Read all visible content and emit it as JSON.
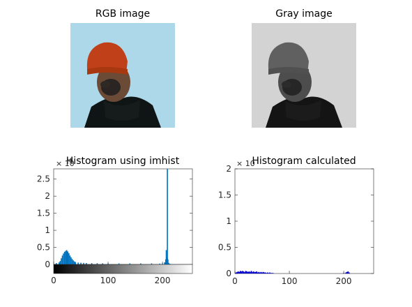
{
  "figure": {
    "rgb_title": "RGB image",
    "gray_title": "Gray image",
    "rgb_image_icon": "portrait-photo",
    "gray_image_icon": "portrait-photo-grayscale",
    "colors": {
      "rgb_background": "#add8ea",
      "gray_background": "#d3d3d3",
      "hist_blue": "#0072bd",
      "calc_blue": "#0000cc"
    }
  },
  "chart_data": [
    {
      "type": "bar",
      "title": "Histogram using imhist",
      "exponent_label": "× 10⁴",
      "exponent_display": "× 10",
      "exponent_power": "4",
      "xlim": [
        0,
        255
      ],
      "ylim": [
        0,
        28000
      ],
      "xticks": [
        0,
        100,
        200
      ],
      "yticks": [
        0,
        5000,
        10000,
        15000,
        20000,
        25000
      ],
      "ytick_labels": [
        "0",
        "0.5",
        "1",
        "1.5",
        "2",
        "2.5"
      ],
      "colorbar": "grayscale",
      "series": [
        {
          "x": [
            5,
            10,
            12,
            14,
            16,
            18,
            20,
            22,
            24,
            26,
            28,
            30,
            32,
            34,
            36,
            38,
            40,
            45,
            50,
            55,
            60,
            70,
            80,
            90,
            100,
            120,
            140,
            160,
            180,
            195,
            200,
            204,
            206,
            207,
            208,
            209,
            210,
            211,
            212,
            214,
            218,
            225,
            235,
            250
          ],
          "y": [
            400,
            600,
            1000,
            1800,
            2600,
            3200,
            3700,
            4000,
            4200,
            3800,
            3300,
            2600,
            2100,
            1600,
            1200,
            900,
            700,
            550,
            500,
            450,
            400,
            380,
            350,
            330,
            300,
            300,
            300,
            300,
            300,
            250,
            300,
            600,
            1500,
            4200,
            2000,
            28000,
            1500,
            500,
            300,
            150,
            80,
            50,
            40,
            30
          ]
        }
      ]
    },
    {
      "type": "bar",
      "title": "Histogram calculated",
      "exponent_label": "× 10",
      "exponent_display": "× 10",
      "exponent_power": "",
      "xlim": [
        0,
        255
      ],
      "ylim": [
        0,
        2
      ],
      "xticks": [
        0,
        100,
        200
      ],
      "yticks": [
        0,
        0.5,
        1,
        1.5,
        2
      ],
      "ytick_labels": [
        "0",
        "0.5",
        "1",
        "1.5",
        "2"
      ],
      "series": [
        {
          "x": [
            2,
            4,
            6,
            8,
            10,
            12,
            14,
            16,
            18,
            20,
            22,
            24,
            26,
            28,
            30,
            32,
            34,
            36,
            38,
            40,
            42,
            44,
            46,
            48,
            50,
            52,
            54,
            56,
            58,
            60,
            62,
            64,
            66,
            68,
            70,
            200,
            204,
            206,
            208,
            210
          ],
          "y": [
            0.02,
            0.03,
            0.04,
            0.03,
            0.05,
            0.04,
            0.05,
            0.04,
            0.03,
            0.05,
            0.04,
            0.03,
            0.04,
            0.03,
            0.05,
            0.03,
            0.04,
            0.03,
            0.03,
            0.04,
            0.02,
            0.03,
            0.02,
            0.03,
            0.02,
            0.03,
            0.02,
            0.02,
            0.01,
            0.02,
            0.01,
            0.02,
            0.01,
            0.01,
            0.01,
            0.01,
            0.02,
            0.03,
            0.04,
            0.02
          ]
        }
      ]
    }
  ]
}
